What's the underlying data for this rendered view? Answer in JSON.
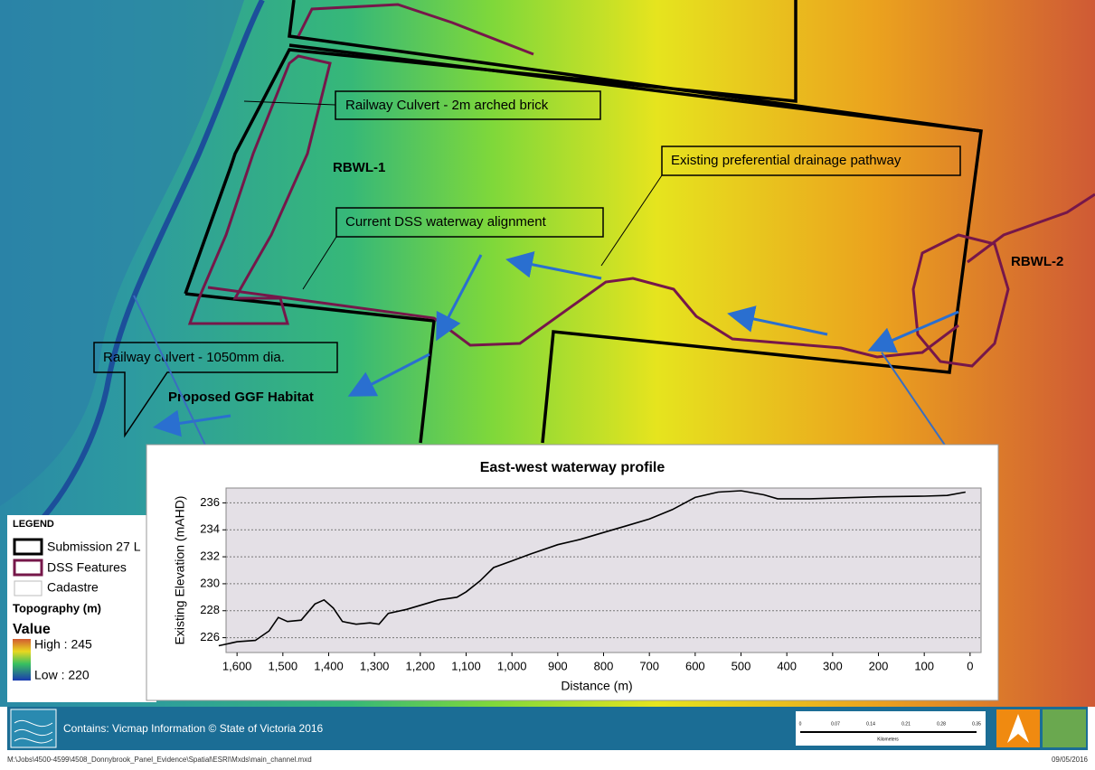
{
  "map": {
    "labels": {
      "culvert_brick": "Railway Culvert - 2m arched brick",
      "rbwl1": "RBWL-1",
      "drainage": "Existing preferential drainage pathway",
      "dss_alignment": "Current DSS waterway alignment",
      "rbwl2": "RBWL-2",
      "culvert_1050": "Railway culvert - 1050mm dia.",
      "ggf": "Proposed GGF Habitat"
    }
  },
  "legend": {
    "title": "LEGEND",
    "items": [
      "Submission 27 L",
      "DSS Features",
      "Cadastre"
    ],
    "topo_title": "Topography (m)",
    "value": "Value",
    "high": "High : 245",
    "low": "Low : 220"
  },
  "footer": {
    "credit": "Contains: Vicmap Information © State of Victoria 2016",
    "scale_ticks": [
      "0",
      "0.07",
      "0.14",
      "0.21",
      "0.28",
      "0.35"
    ],
    "scale_unit": "Kilometers",
    "path": "M:\\Jobs\\4500-4599\\4508_Donnybrook_Panel_Evidence\\Spatial\\ESRI\\Mxds\\main_channel.mxd",
    "date": "09/05/2016"
  },
  "chart_data": {
    "type": "line",
    "title": "East-west waterway profile",
    "x_label": "Distance (m)",
    "y_label": "Existing Elevation (mAHD)",
    "x": [
      1640,
      1600,
      1560,
      1530,
      1510,
      1490,
      1460,
      1430,
      1410,
      1390,
      1370,
      1340,
      1310,
      1290,
      1270,
      1230,
      1200,
      1160,
      1120,
      1100,
      1070,
      1040,
      1000,
      960,
      900,
      850,
      800,
      750,
      700,
      650,
      600,
      550,
      500,
      450,
      420,
      350,
      300,
      200,
      100,
      50,
      10
    ],
    "series": [
      {
        "color": "#000000",
        "values": [
          225.4,
          225.7,
          225.8,
          226.5,
          227.5,
          227.2,
          227.3,
          228.5,
          228.8,
          228.2,
          227.2,
          227.0,
          227.1,
          227.0,
          227.8,
          228.1,
          228.4,
          228.8,
          229.0,
          229.4,
          230.2,
          231.2,
          231.7,
          232.2,
          232.9,
          233.3,
          233.8,
          234.3,
          234.8,
          235.5,
          236.4,
          236.8,
          236.9,
          236.6,
          236.3,
          236.3,
          236.35,
          236.45,
          236.5,
          236.55,
          236.8
        ]
      }
    ],
    "xlim": [
      1624,
      -24
    ],
    "ylim": [
      224.9,
      237.1
    ],
    "xticks": [
      {
        "value": 1600,
        "label": "1,600"
      },
      {
        "value": 1500,
        "label": "1,500"
      },
      {
        "value": 1400,
        "label": "1,400"
      },
      {
        "value": 1300,
        "label": "1,300"
      },
      {
        "value": 1200,
        "label": "1,200"
      },
      {
        "value": 1100,
        "label": "1,100"
      },
      {
        "value": 1000,
        "label": "1,000"
      },
      900,
      800,
      700,
      600,
      500,
      400,
      300,
      200,
      100,
      0
    ],
    "yticks": [
      226,
      228,
      230,
      232,
      234,
      236
    ],
    "grid": true
  }
}
